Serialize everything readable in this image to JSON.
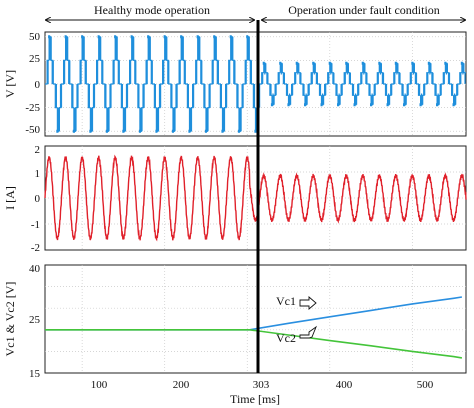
{
  "chart_data": [
    {
      "type": "line",
      "panel": "voltage",
      "ylabel": "V [V]",
      "xlim": [
        55,
        565
      ],
      "ylim": [
        -55,
        55
      ],
      "yticks": [
        "50",
        "25",
        "0",
        "-25",
        "-50"
      ],
      "grid": true,
      "series": [
        {
          "color": "#1f8fdc",
          "style": "multilevel-square",
          "x_start": 55,
          "x_end": 565,
          "period_ms": 20,
          "healthy_levels": [
            -50,
            -25,
            0,
            25,
            50
          ],
          "fault_levels": [
            -25,
            0,
            25
          ]
        }
      ]
    },
    {
      "type": "line",
      "panel": "current",
      "ylabel": "I [A]",
      "xlim": [
        55,
        565
      ],
      "ylim": [
        -2,
        2
      ],
      "yticks": [
        "2",
        "1",
        "0",
        "-1",
        "-2"
      ],
      "grid": true,
      "series": [
        {
          "color": "#e0202a",
          "style": "sine",
          "x_start": 55,
          "x_end": 565,
          "period_ms": 20,
          "healthy_amplitude": 1.55,
          "fault_amplitude": 0.85
        }
      ]
    },
    {
      "type": "line",
      "panel": "capacitor-voltage",
      "ylabel": "Vc1 & Vc2 [V]",
      "xlabel": "Time [ms]",
      "xlim": [
        55,
        565
      ],
      "ylim": [
        15,
        40
      ],
      "yticks": [
        "40",
        "25",
        "15"
      ],
      "xticks": [
        "100",
        "200",
        "303",
        "400",
        "500"
      ],
      "grid": true,
      "series": [
        {
          "name": "Vc1",
          "color": "#2a8fe0",
          "x": [
            55,
            303,
            350,
            400,
            450,
            500,
            550,
            560
          ],
          "y": [
            25,
            25,
            26.5,
            28,
            29.5,
            31,
            32.3,
            32.6
          ]
        },
        {
          "name": "Vc2",
          "color": "#44c43a",
          "x": [
            55,
            303,
            350,
            400,
            450,
            500,
            550,
            560
          ],
          "y": [
            25,
            25,
            23.8,
            22.5,
            21.3,
            20.0,
            18.8,
            18.5
          ]
        }
      ]
    }
  ],
  "annotations": {
    "healthy_label": "Healthy mode operation",
    "fault_label": "Operation under fault condition",
    "fault_time": 303
  }
}
